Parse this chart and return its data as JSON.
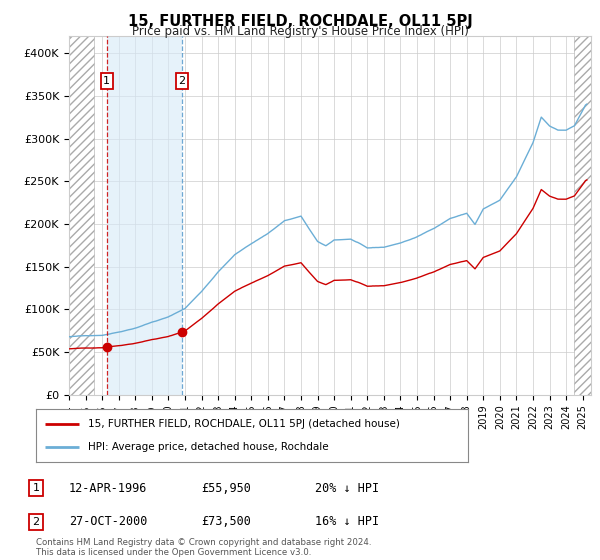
{
  "title": "15, FURTHER FIELD, ROCHDALE, OL11 5PJ",
  "subtitle": "Price paid vs. HM Land Registry's House Price Index (HPI)",
  "xlim": [
    1994.0,
    2025.5
  ],
  "ylim": [
    0,
    420000
  ],
  "yticks": [
    0,
    50000,
    100000,
    150000,
    200000,
    250000,
    300000,
    350000,
    400000
  ],
  "ytick_labels": [
    "£0",
    "£50K",
    "£100K",
    "£150K",
    "£200K",
    "£250K",
    "£300K",
    "£350K",
    "£400K"
  ],
  "xticks": [
    1994,
    1995,
    1996,
    1997,
    1998,
    1999,
    2000,
    2001,
    2002,
    2003,
    2004,
    2005,
    2006,
    2007,
    2008,
    2009,
    2010,
    2011,
    2012,
    2013,
    2014,
    2015,
    2016,
    2017,
    2018,
    2019,
    2020,
    2021,
    2022,
    2023,
    2024,
    2025
  ],
  "hpi_color": "#6baed6",
  "price_color": "#cc0000",
  "shade_color": "#d6eaf8",
  "sale1_x": 1996.28,
  "sale1_y": 55950,
  "sale2_x": 2000.82,
  "sale2_y": 73500,
  "legend_line1": "15, FURTHER FIELD, ROCHDALE, OL11 5PJ (detached house)",
  "legend_line2": "HPI: Average price, detached house, Rochdale",
  "annotation1_date": "12-APR-1996",
  "annotation1_price": "£55,950",
  "annotation1_pct": "20% ↓ HPI",
  "annotation2_date": "27-OCT-2000",
  "annotation2_price": "£73,500",
  "annotation2_pct": "16% ↓ HPI",
  "footer": "Contains HM Land Registry data © Crown copyright and database right 2024.\nThis data is licensed under the Open Government Licence v3.0.",
  "background_color": "#ffffff",
  "grid_color": "#cccccc"
}
